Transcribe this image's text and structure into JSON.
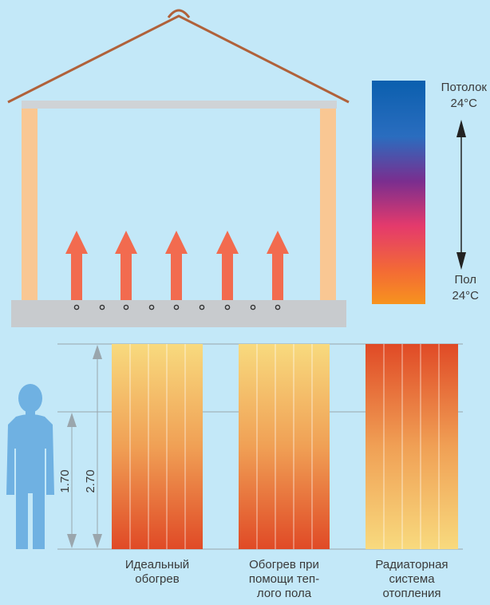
{
  "scale": {
    "top_label": "Потолок",
    "top_temp": "24°C",
    "bottom_label": "Пол",
    "bottom_temp": "24°C"
  },
  "dimensions": {
    "height_total": "2.70",
    "height_person": "1.70"
  },
  "columns": [
    {
      "label_lines": [
        "Идеальный",
        "обогрев"
      ]
    },
    {
      "label_lines": [
        "Обогрев при",
        "помощи теп-",
        "лого пола"
      ]
    },
    {
      "label_lines": [
        "Радиаторная",
        "система",
        "отопления"
      ]
    }
  ],
  "colors": {
    "background": "#c3e8f8",
    "roof": "#b0613a",
    "pillar": "#f9c793",
    "ceiling": "#cfd3d6",
    "floor": "#c8cbce",
    "arrow": "#f26b4f",
    "hot": "#e04a26",
    "warm": "#f8d97a",
    "person": "#6fb1e2"
  }
}
